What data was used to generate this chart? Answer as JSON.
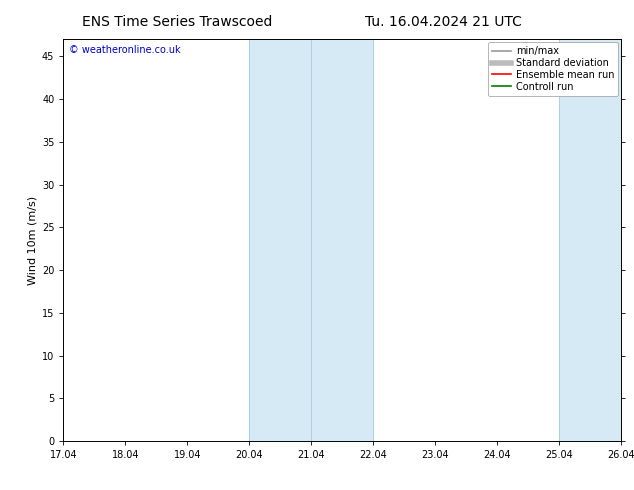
{
  "title_left": "ENS Time Series Trawscoed",
  "title_right": "Tu. 16.04.2024 21 UTC",
  "ylabel": "Wind 10m (m/s)",
  "ylim": [
    0,
    47
  ],
  "yticks": [
    0,
    5,
    10,
    15,
    20,
    25,
    30,
    35,
    40,
    45
  ],
  "xlim_start": 17.04,
  "xlim_end": 26.04,
  "xtick_labels": [
    "17.04",
    "18.04",
    "19.04",
    "20.04",
    "21.04",
    "22.04",
    "23.04",
    "24.04",
    "25.04",
    "26.04"
  ],
  "xtick_positions": [
    17.04,
    18.04,
    19.04,
    20.04,
    21.04,
    22.04,
    23.04,
    24.04,
    25.04,
    26.04
  ],
  "shaded_regions": [
    {
      "x_start": 20.04,
      "x_end": 22.04,
      "color": "#d6eaf5"
    },
    {
      "x_start": 25.04,
      "x_end": 26.04,
      "color": "#d6eaf5"
    }
  ],
  "vertical_lines": [
    {
      "x": 20.04,
      "color": "#b0cfe0"
    },
    {
      "x": 21.04,
      "color": "#b0cfe0"
    },
    {
      "x": 22.04,
      "color": "#b0cfe0"
    },
    {
      "x": 25.04,
      "color": "#b0cfe0"
    },
    {
      "x": 26.04,
      "color": "#b0cfe0"
    }
  ],
  "watermark_text": "© weatheronline.co.uk",
  "watermark_color": "#0000cc",
  "legend_items": [
    {
      "label": "min/max",
      "color": "#999999",
      "lw": 1.2,
      "style": "solid"
    },
    {
      "label": "Standard deviation",
      "color": "#bbbbbb",
      "lw": 4,
      "style": "solid"
    },
    {
      "label": "Ensemble mean run",
      "color": "#ff0000",
      "lw": 1.2,
      "style": "solid"
    },
    {
      "label": "Controll run",
      "color": "#008000",
      "lw": 1.2,
      "style": "solid"
    }
  ],
  "bg_color": "#ffffff",
  "plot_bg_color": "#ffffff",
  "title_fontsize": 10,
  "ylabel_fontsize": 8,
  "tick_fontsize": 7,
  "legend_fontsize": 7,
  "watermark_fontsize": 7
}
